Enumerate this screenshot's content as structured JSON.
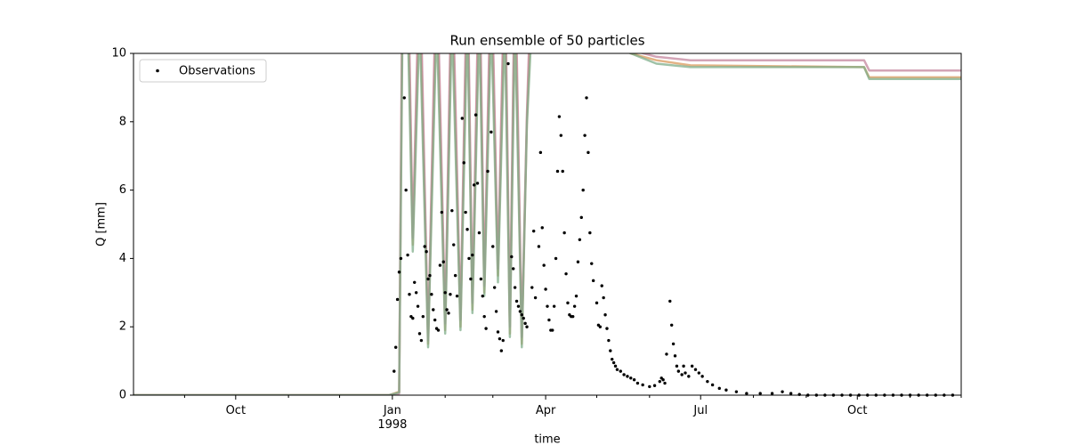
{
  "chart_data": {
    "type": "line-scatter",
    "title": "Run ensemble of 50 particles",
    "x_label": "time",
    "y_label": "Q [mm]",
    "xlim": [
      "1997-08-02",
      "1998-12-01"
    ],
    "ylim": [
      0,
      10
    ],
    "yticks": [
      0,
      2,
      4,
      6,
      8,
      10
    ],
    "xticks": [
      {
        "value": "1997-10-01",
        "label": "Oct"
      },
      {
        "value": "1998-01-01",
        "label": "Jan\n1998"
      },
      {
        "value": "1998-04-01",
        "label": "Apr"
      },
      {
        "value": "1998-07-01",
        "label": "Jul"
      },
      {
        "value": "1998-10-01",
        "label": "Oct"
      }
    ],
    "xminorticks": [
      "1997-08-01",
      "1997-09-01",
      "1997-11-01",
      "1997-12-01",
      "1998-02-01",
      "1998-03-01",
      "1998-05-01",
      "1998-06-01",
      "1998-08-01",
      "1998-09-01",
      "1998-11-01",
      "1998-12-01"
    ],
    "legend": "upper-left",
    "ensemble_x": [
      "1997-08-02",
      "1997-12-30",
      "1998-01-05",
      "1998-01-07",
      "1998-01-10",
      "1998-01-13",
      "1998-01-17",
      "1998-01-22",
      "1998-01-27",
      "1998-02-01",
      "1998-02-05",
      "1998-02-10",
      "1998-02-14",
      "1998-02-17",
      "1998-02-21",
      "1998-02-24",
      "1998-02-28",
      "1998-03-04",
      "1998-03-08",
      "1998-03-11",
      "1998-03-14",
      "1998-03-18",
      "1998-03-21",
      "1998-03-24",
      "1998-05-21",
      "1998-06-05",
      "1998-06-25",
      "1998-10-05",
      "1998-10-08",
      "1998-12-01"
    ],
    "ensemble": [
      {
        "color": "#d99a5c",
        "values": [
          0,
          0,
          0.1,
          12,
          12,
          4.4,
          12,
          1.5,
          12,
          1.9,
          12,
          2.0,
          12,
          2.5,
          12,
          3.0,
          12,
          3.5,
          12,
          1.8,
          12,
          1.5,
          8,
          12,
          10.0,
          9.8,
          9.65,
          9.6,
          9.3,
          9.3
        ]
      },
      {
        "color": "#c4869e",
        "values": [
          0,
          0,
          0.05,
          13,
          13,
          4.6,
          13,
          1.6,
          13,
          2.1,
          13,
          2.2,
          13,
          2.7,
          13,
          3.2,
          13,
          3.7,
          13,
          2.0,
          13,
          1.7,
          8.2,
          13,
          10.1,
          9.9,
          9.8,
          9.8,
          9.5,
          9.5
        ]
      },
      {
        "color": "#7fae8a",
        "values": [
          0,
          0,
          0.08,
          11,
          11,
          4.2,
          11,
          1.4,
          11,
          1.8,
          11,
          1.9,
          11,
          2.4,
          11,
          2.9,
          11,
          3.3,
          11,
          1.7,
          11,
          1.4,
          7.9,
          11,
          10.0,
          9.7,
          9.6,
          9.6,
          9.25,
          9.25
        ]
      }
    ],
    "observations": {
      "name": "Observations",
      "color": "#000000",
      "x": [
        "1998-01-02",
        "1998-01-03",
        "1998-01-04",
        "1998-01-05",
        "1998-01-06",
        "1998-01-08",
        "1998-01-09",
        "1998-01-10",
        "1998-01-11",
        "1998-01-12",
        "1998-01-13",
        "1998-01-14",
        "1998-01-15",
        "1998-01-16",
        "1998-01-17",
        "1998-01-18",
        "1998-01-19",
        "1998-01-20",
        "1998-01-21",
        "1998-01-22",
        "1998-01-23",
        "1998-01-24",
        "1998-01-25",
        "1998-01-26",
        "1998-01-27",
        "1998-01-28",
        "1998-01-29",
        "1998-01-30",
        "1998-01-31",
        "1998-02-01",
        "1998-02-02",
        "1998-02-03",
        "1998-02-04",
        "1998-02-05",
        "1998-02-06",
        "1998-02-07",
        "1998-02-08",
        "1998-02-11",
        "1998-02-12",
        "1998-02-13",
        "1998-02-14",
        "1998-02-15",
        "1998-02-16",
        "1998-02-17",
        "1998-02-18",
        "1998-02-19",
        "1998-02-20",
        "1998-02-21",
        "1998-02-22",
        "1998-02-23",
        "1998-02-24",
        "1998-02-25",
        "1998-02-26",
        "1998-02-28",
        "1998-03-01",
        "1998-03-02",
        "1998-03-03",
        "1998-03-04",
        "1998-03-05",
        "1998-03-06",
        "1998-03-07",
        "1998-03-10",
        "1998-03-12",
        "1998-03-13",
        "1998-03-14",
        "1998-03-15",
        "1998-03-16",
        "1998-03-17",
        "1998-03-18",
        "1998-03-19",
        "1998-03-20",
        "1998-03-21",
        "1998-03-24",
        "1998-03-25",
        "1998-03-26",
        "1998-03-28",
        "1998-03-29",
        "1998-03-30",
        "1998-03-31",
        "1998-04-01",
        "1998-04-02",
        "1998-04-03",
        "1998-04-04",
        "1998-04-05",
        "1998-04-06",
        "1998-04-07",
        "1998-04-08",
        "1998-04-09",
        "1998-04-10",
        "1998-04-11",
        "1998-04-12",
        "1998-04-13",
        "1998-04-14",
        "1998-04-15",
        "1998-04-16",
        "1998-04-17",
        "1998-04-18",
        "1998-04-19",
        "1998-04-20",
        "1998-04-21",
        "1998-04-22",
        "1998-04-23",
        "1998-04-24",
        "1998-04-25",
        "1998-04-26",
        "1998-04-27",
        "1998-04-28",
        "1998-04-29",
        "1998-05-01",
        "1998-05-02",
        "1998-05-03",
        "1998-05-04",
        "1998-05-05",
        "1998-05-06",
        "1998-05-07",
        "1998-05-08",
        "1998-05-09",
        "1998-05-10",
        "1998-05-11",
        "1998-05-12",
        "1998-05-13",
        "1998-05-15",
        "1998-05-17",
        "1998-05-19",
        "1998-05-21",
        "1998-05-23",
        "1998-05-25",
        "1998-05-28",
        "1998-06-01",
        "1998-06-04",
        "1998-06-07",
        "1998-06-08",
        "1998-06-09",
        "1998-06-10",
        "1998-06-11",
        "1998-06-13",
        "1998-06-14",
        "1998-06-15",
        "1998-06-16",
        "1998-06-17",
        "1998-06-18",
        "1998-06-20",
        "1998-06-21",
        "1998-06-22",
        "1998-06-24",
        "1998-06-26",
        "1998-06-28",
        "1998-06-30",
        "1998-07-02",
        "1998-07-05",
        "1998-07-08",
        "1998-07-12",
        "1998-07-16",
        "1998-07-22",
        "1998-07-28",
        "1998-08-05",
        "1998-08-12",
        "1998-08-18",
        "1998-08-23",
        "1998-08-28",
        "1998-09-02",
        "1998-09-07",
        "1998-09-12",
        "1998-09-17",
        "1998-09-22",
        "1998-09-27",
        "1998-10-02",
        "1998-10-07",
        "1998-10-12",
        "1998-10-17",
        "1998-10-22",
        "1998-10-27",
        "1998-11-01",
        "1998-11-06",
        "1998-11-11",
        "1998-11-16",
        "1998-11-21",
        "1998-11-26"
      ],
      "values": [
        0.7,
        1.4,
        2.8,
        3.6,
        4.0,
        8.7,
        6.0,
        4.1,
        2.95,
        2.3,
        2.25,
        3.3,
        3.0,
        2.6,
        1.8,
        1.6,
        2.3,
        4.35,
        4.2,
        3.4,
        3.5,
        2.95,
        2.5,
        2.2,
        1.95,
        1.9,
        3.8,
        5.35,
        3.9,
        3.0,
        2.5,
        2.4,
        2.95,
        5.4,
        4.4,
        3.5,
        2.9,
        8.1,
        6.8,
        5.35,
        4.85,
        4.0,
        3.4,
        4.1,
        6.15,
        8.2,
        6.2,
        4.75,
        3.4,
        2.9,
        2.3,
        1.95,
        6.55,
        7.7,
        4.35,
        3.15,
        2.45,
        1.85,
        1.65,
        1.3,
        1.6,
        9.7,
        4.05,
        3.7,
        3.15,
        2.75,
        2.6,
        2.45,
        2.35,
        2.25,
        2.1,
        2.0,
        3.15,
        4.8,
        2.85,
        4.35,
        7.1,
        4.9,
        3.8,
        3.1,
        2.6,
        2.2,
        1.9,
        1.9,
        2.6,
        4.0,
        6.55,
        8.15,
        7.6,
        6.55,
        4.75,
        3.55,
        2.7,
        2.35,
        2.3,
        2.3,
        2.6,
        2.9,
        3.9,
        4.55,
        5.2,
        6.0,
        7.6,
        8.7,
        7.1,
        4.75,
        3.85,
        3.35,
        2.7,
        2.05,
        2.0,
        3.2,
        2.85,
        2.35,
        1.95,
        1.6,
        1.3,
        1.05,
        0.95,
        0.85,
        0.75,
        0.7,
        0.6,
        0.55,
        0.5,
        0.45,
        0.35,
        0.3,
        0.25,
        0.28,
        0.4,
        0.5,
        0.45,
        0.35,
        1.2,
        2.75,
        2.05,
        1.5,
        1.15,
        0.85,
        0.7,
        0.6,
        0.85,
        0.65,
        0.55,
        0.85,
        0.75,
        0.65,
        0.55,
        0.4,
        0.3,
        0.2,
        0.15,
        0.1,
        0.05,
        0.05,
        0.05,
        0.1,
        0.05,
        0.02,
        0,
        0,
        0,
        0,
        0,
        0,
        0,
        0,
        0,
        0,
        0,
        0,
        0,
        0,
        0,
        0,
        0,
        0
      ]
    }
  }
}
